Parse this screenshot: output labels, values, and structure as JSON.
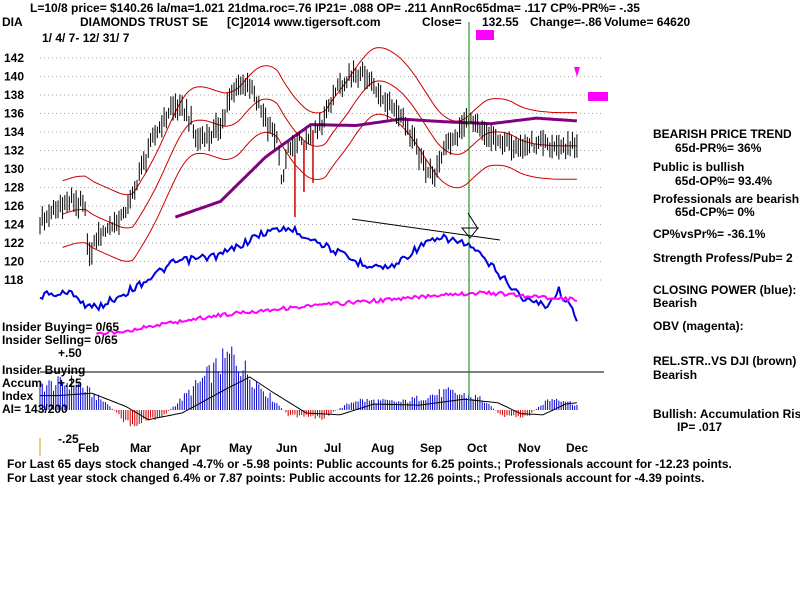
{
  "header": {
    "line1": "L=10/8  price= $140.26  la/ma=1.021  21dma.roc=.76  IP21= .088  OP= .211  AnnRoc65dma= .117  CP%-PR%= -.35",
    "symbol": "DIA",
    "name": "DIAMONDS TRUST SE",
    "copyright": "[C]2014 www.tigersoft.com",
    "close_label": "Close=",
    "close_value": "132.55",
    "change": "Change=-.86",
    "volume": "Volume= 64620",
    "date_range": "1/ 4/ 7- 12/ 31/ 7"
  },
  "left_labels": {
    "insider_buying_ratio": "Insider Buying= 0/65",
    "insider_selling_ratio": "Insider Selling= 0/65",
    "plus50": "+.50",
    "insider_buying": "Insider Buying",
    "accum": "Accum",
    "plus25": "+.25",
    "index": "Index",
    "ai": "AI= 143/200",
    "minus25": "-.25"
  },
  "right_panel": {
    "trend_title": "BEARISH PRICE TREND",
    "pr": "65d-PR%= 36%",
    "public_title": "Public is bullish",
    "op": "65d-OP%= 93.4%",
    "pro_title": "Professionals are bearish",
    "cp": "65d-CP%= 0%",
    "cpvspr": "CP%vsPr%= -36.1%",
    "strength": "Strength Profess/Pub= 2",
    "closing_power": "CLOSING POWER (blue):",
    "closing_power_val": "Bearish",
    "obv": "OBV (magenta):",
    "relstr": "REL.STR..VS DJI (brown)",
    "relstr_val": "Bearish",
    "bullish_accum": "Bullish: Accumulation Risi",
    "ip": "IP=  .017"
  },
  "footer": {
    "line1": "For Last 65 days stock changed -4.7% or -5.98 points:  Public accounts for  6.25 points.;  Professionals account for -12.23 points.",
    "line2": "For Last year stock changed  6.4% or  7.87 points:  Public accounts for  12.26 points.;  Professionals account for -4.39 points."
  },
  "colors": {
    "price": "#000000",
    "bands": "#cc0000",
    "ma": "#800080",
    "closing_power": "#0000dd",
    "obv": "#ff00ff",
    "accum_pos": "#0000cc",
    "accum_neg": "#cc0000",
    "signal": "#008000"
  },
  "chart_data": {
    "type": "line",
    "x_labels": [
      "Feb",
      "Mar",
      "Apr",
      "May",
      "Jun",
      "Jul",
      "Aug",
      "Sep",
      "Oct",
      "Nov",
      "Dec"
    ],
    "y_ticks": [
      118,
      120,
      122,
      124,
      126,
      128,
      130,
      132,
      134,
      136,
      138,
      140,
      142
    ],
    "ylim": [
      116,
      144
    ],
    "price_series": {
      "t": [
        0,
        5,
        10,
        15,
        20,
        21,
        23,
        25,
        30,
        35,
        40,
        45,
        50,
        55,
        60,
        65,
        70,
        75,
        80,
        85,
        90,
        95,
        100,
        105,
        107,
        110,
        115,
        117,
        120,
        125,
        130,
        135,
        140,
        145,
        150,
        155,
        160,
        165,
        170,
        175,
        180,
        185,
        190,
        195,
        200,
        205,
        210,
        215,
        220,
        225,
        230,
        235,
        240,
        245,
        250
      ],
      "close": [
        124.3,
        125.1,
        126.0,
        126.6,
        125.6,
        121.3,
        120.9,
        122.5,
        123.6,
        124.3,
        126.4,
        130.2,
        133.1,
        135.5,
        136.8,
        136.1,
        133.2,
        133.5,
        134.9,
        137.9,
        139.7,
        138.1,
        135.2,
        133.3,
        128.7,
        131.8,
        133.1,
        132.4,
        133.3,
        134.8,
        138.1,
        139.6,
        140.6,
        140.1,
        138.1,
        136.8,
        135.9,
        133.5,
        130.4,
        129.3,
        132.6,
        133.7,
        135.5,
        134.0,
        133.2,
        132.9,
        132.5,
        132.5,
        132.5,
        132.5,
        132.5,
        132.5,
        132.5,
        132.5,
        132.5
      ]
    },
    "ma_65": {
      "t": [
        60,
        80,
        100,
        120,
        140,
        160,
        180,
        200,
        220,
        238
      ],
      "value": [
        124.8,
        126.5,
        131.3,
        134.8,
        134.7,
        135.4,
        135.1,
        134.9,
        135.5,
        135.2
      ]
    },
    "annotations": [
      "Insider Buying"
    ],
    "grid": true
  }
}
